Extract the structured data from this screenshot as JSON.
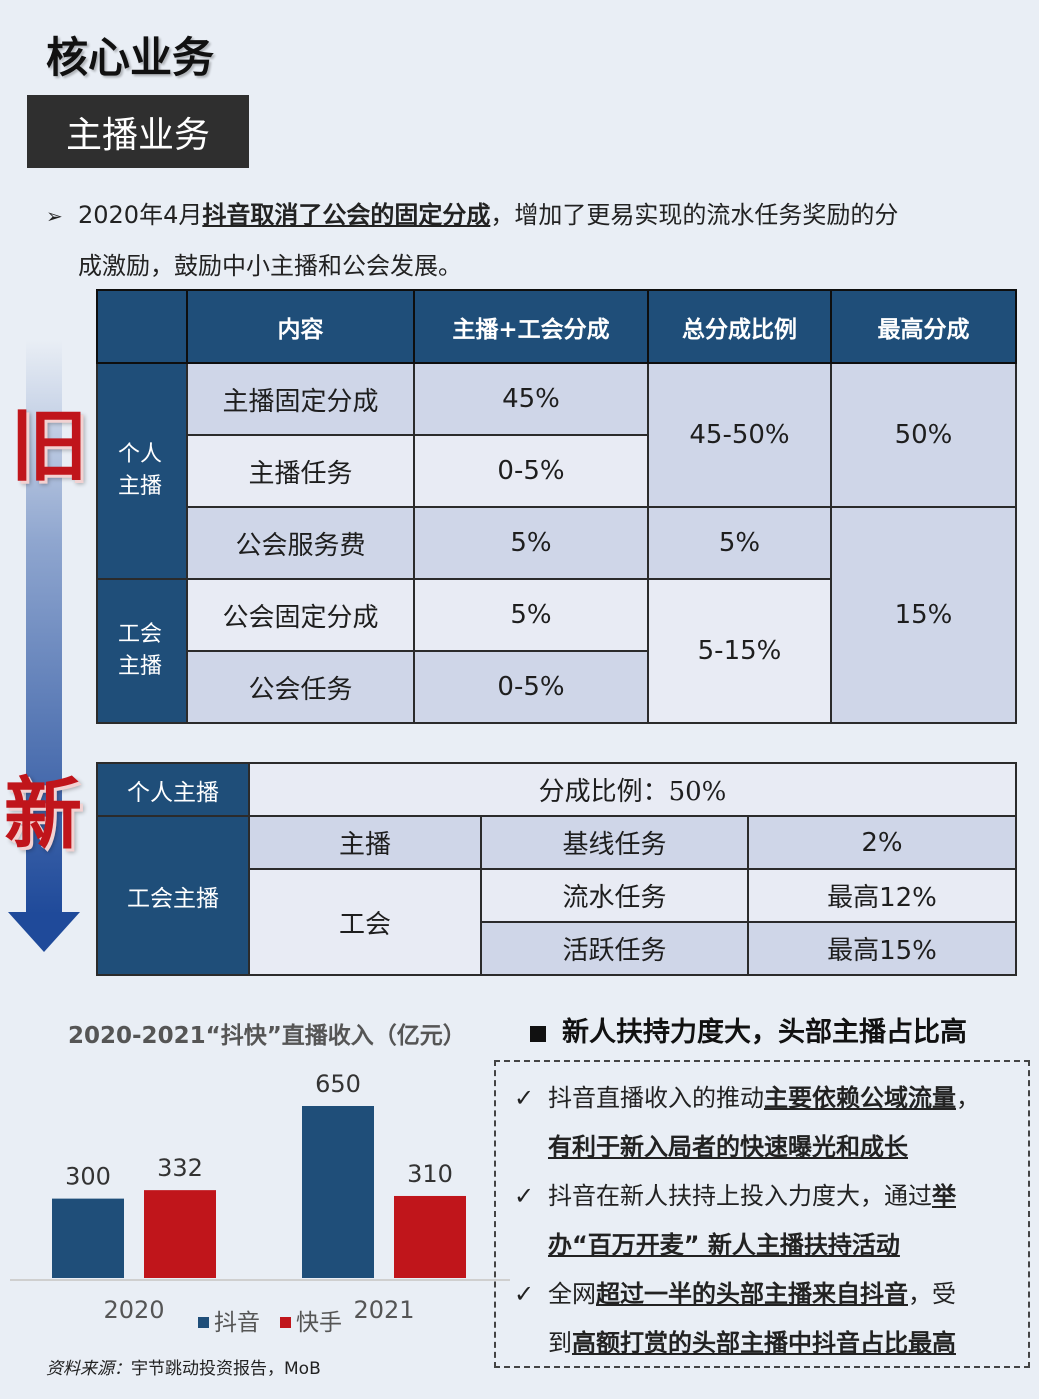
{
  "page_title": "核心业务",
  "section_badge": "主播业务",
  "intro": {
    "prefix": "2020年4月",
    "underline": "抖音取消了公会的固定分成",
    "rest_line1": "，增加了更易实现的流水任务奖励的分",
    "line2": "成激励，鼓励中小主播和公会发展。"
  },
  "labels": {
    "old": "旧",
    "new": "新"
  },
  "old_table": {
    "headers": [
      "内容",
      "主播+工会分成",
      "总分成比例",
      "最高分成"
    ],
    "cat_personal": "个人\n主播",
    "cat_guild": "工会\n主播",
    "rows": [
      {
        "content": "主播固定分成",
        "split": "45%"
      },
      {
        "content": "主播任务",
        "split": "0-5%"
      },
      {
        "content": "公会服务费",
        "split": "5%"
      },
      {
        "content": "公会固定分成",
        "split": "5%"
      },
      {
        "content": "公会任务",
        "split": "0-5%"
      }
    ],
    "total_a": "45-50%",
    "total_b": "5%",
    "total_c": "5-15%",
    "max_a": "50%",
    "max_b": "15%"
  },
  "new_table": {
    "personal_label": "个人主播",
    "personal_ratio": "分成比例：50%",
    "guild_label": "工会主播",
    "anchor_label": "主播",
    "guild_sub": "工会",
    "tasks": [
      {
        "name": "基线任务",
        "value": "2%"
      },
      {
        "name": "流水任务",
        "value": "最高12%"
      },
      {
        "name": "活跃任务",
        "value": "最高15%"
      }
    ]
  },
  "chart_title": "2020-2021“抖快”直播收入（亿元）",
  "chart_data": {
    "type": "bar",
    "categories": [
      "2020",
      "2021"
    ],
    "series": [
      {
        "name": "抖音",
        "values": [
          300,
          650
        ],
        "color": "#1f4e79"
      },
      {
        "name": "快手",
        "values": [
          332,
          310
        ],
        "color": "#c0151b"
      }
    ],
    "ylim": [
      0,
      650
    ]
  },
  "highlight_title": "新人扶持力度大，头部主播占比高",
  "points": [
    {
      "a": "抖音直播收入的推动",
      "u1": "主要依赖公域流量",
      "b": "，",
      "u2": "有利于新入局者的快速曝光和成长",
      "c": ""
    },
    {
      "a": "抖音在新人扶持上投入力度大，通过",
      "u1": "举",
      "b": "",
      "u2": "办“百万开麦” 新人主播扶持活动",
      "c": ""
    },
    {
      "a": "全网",
      "u1": "超过一半的头部主播来自抖音",
      "b": "，受",
      "l2a": "到",
      "u2": "高额打赏的头部主播中抖音占比最高",
      "c": ""
    }
  ],
  "source": {
    "label": "资料来源：",
    "text": "宇节跳动投资报告，MoB"
  }
}
